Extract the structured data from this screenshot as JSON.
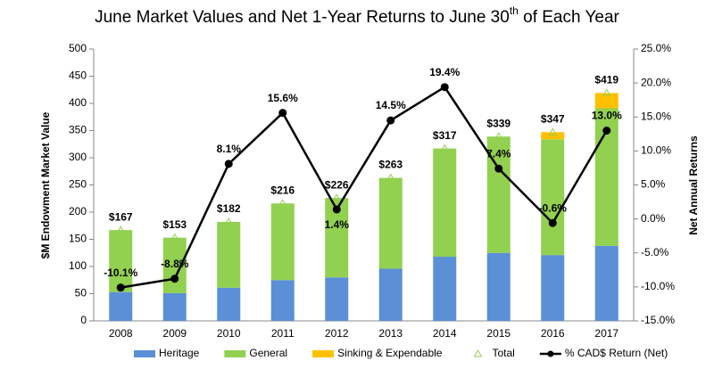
{
  "chart_data": {
    "type": "bar",
    "title": [
      "June Market Values and Net 1-Year Returns to June 30",
      "th",
      " of Each Year"
    ],
    "y_label": "$M Endowment Market Value",
    "y2_label": "Net Annual Returns",
    "categories": [
      "2008",
      "2009",
      "2010",
      "2011",
      "2012",
      "2013",
      "2014",
      "2015",
      "2016",
      "2017"
    ],
    "ylim": [
      0,
      500
    ],
    "yticks": [
      0,
      50,
      100,
      150,
      200,
      250,
      300,
      350,
      400,
      450,
      500
    ],
    "y2lim": [
      -15,
      25
    ],
    "y2ticks": [
      {
        "value": -15,
        "label": "-15.0%"
      },
      {
        "value": -10,
        "label": "-10.0%"
      },
      {
        "value": -5,
        "label": "-5.0%"
      },
      {
        "value": 0,
        "label": "0.0%"
      },
      {
        "value": 5,
        "label": "5.0%"
      },
      {
        "value": 10,
        "label": "10.0%"
      },
      {
        "value": 15,
        "label": "15.0%"
      },
      {
        "value": 20,
        "label": "20.0%"
      },
      {
        "value": 25,
        "label": "25.0%"
      }
    ],
    "series": [
      {
        "name": "Heritage",
        "type": "bar",
        "color": "#5b8fd6",
        "values": [
          53,
          51,
          61,
          75,
          80,
          96,
          118,
          125,
          121,
          138
        ]
      },
      {
        "name": "General",
        "type": "bar",
        "color": "#92d050",
        "values": [
          114,
          102,
          121,
          141,
          146,
          167,
          199,
          214,
          213,
          253
        ]
      },
      {
        "name": "Sinking & Expendable",
        "type": "bar",
        "color": "#ffc000",
        "values": [
          0,
          0,
          0,
          0,
          0,
          0,
          0,
          0,
          13,
          28
        ]
      },
      {
        "name": "Total",
        "type": "marker",
        "color": "#92d050",
        "values": [
          167,
          153,
          182,
          216,
          226,
          263,
          317,
          339,
          347,
          419
        ],
        "value_labels": [
          "$167",
          "$153",
          "$182",
          "$216",
          "$226",
          "$263",
          "$317",
          "$339",
          "$347",
          "$419"
        ]
      },
      {
        "name": "% CAD$ Return (Net)",
        "type": "line",
        "axis": "y2",
        "color": "#000000",
        "values": [
          -10.1,
          -8.8,
          8.1,
          15.6,
          1.4,
          14.5,
          19.4,
          7.4,
          -0.6,
          13.0
        ],
        "value_labels": [
          "-10.1%",
          "-8.8%",
          "8.1%",
          "15.6%",
          "1.4%",
          "14.5%",
          "19.4%",
          "7.4%",
          "-0.6%",
          "13.0%"
        ]
      }
    ]
  }
}
